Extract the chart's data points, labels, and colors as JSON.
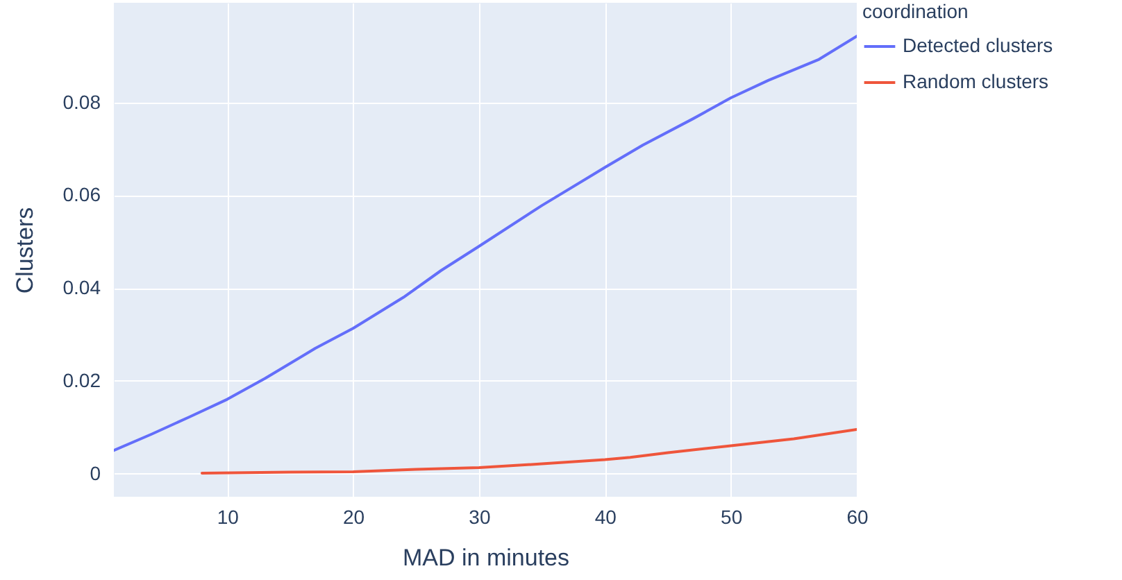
{
  "chart_data": {
    "type": "line",
    "xlabel": "MAD in minutes",
    "ylabel": "Clusters",
    "legend_title": "coordination",
    "xlim": [
      1,
      60
    ],
    "ylim": [
      -0.005,
      0.1015
    ],
    "xticks": [
      10,
      20,
      30,
      40,
      50,
      60
    ],
    "yticks": [
      0,
      0.02,
      0.04,
      0.06,
      0.08
    ],
    "grid": true,
    "legend": "top right",
    "series": [
      {
        "name": "Detected clusters",
        "color": "#636efa",
        "x": [
          1,
          4,
          7,
          10,
          13,
          17,
          20,
          24,
          27,
          30,
          35,
          40,
          43,
          47,
          50,
          53,
          57,
          60
        ],
        "values": [
          0.005,
          0.0085,
          0.0122,
          0.016,
          0.0205,
          0.027,
          0.0313,
          0.038,
          0.0438,
          0.049,
          0.0578,
          0.066,
          0.0708,
          0.0765,
          0.081,
          0.0848,
          0.0893,
          0.0943
        ]
      },
      {
        "name": "Random clusters",
        "color": "#ef553b",
        "x": [
          8,
          15,
          20,
          25,
          30,
          35,
          40,
          42,
          45,
          50,
          55,
          60
        ],
        "values": [
          0.0001,
          0.0003,
          0.0004,
          0.0009,
          0.0013,
          0.0021,
          0.003,
          0.0035,
          0.0045,
          0.006,
          0.0075,
          0.0095
        ]
      }
    ]
  }
}
